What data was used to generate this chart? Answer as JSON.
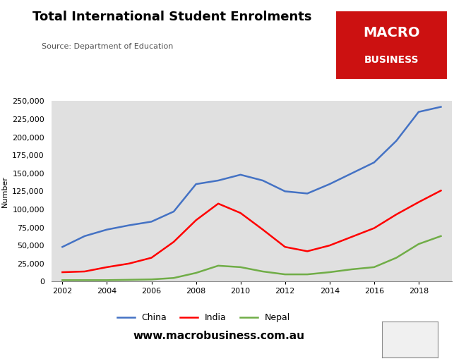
{
  "title": "Total International Student Enrolments",
  "source": "Source: Department of Education",
  "ylabel": "Number",
  "xlabel": "",
  "years": [
    2002,
    2003,
    2004,
    2005,
    2006,
    2007,
    2008,
    2009,
    2010,
    2011,
    2012,
    2013,
    2014,
    2015,
    2016,
    2017,
    2018,
    2019
  ],
  "china": [
    48000,
    63000,
    72000,
    78000,
    83000,
    97000,
    135000,
    140000,
    148000,
    140000,
    125000,
    122000,
    135000,
    150000,
    165000,
    195000,
    235000,
    242000
  ],
  "india": [
    13000,
    14000,
    20000,
    25000,
    33000,
    55000,
    85000,
    108000,
    95000,
    72000,
    48000,
    42000,
    50000,
    62000,
    74000,
    93000,
    110000,
    126000
  ],
  "nepal": [
    2000,
    2000,
    2000,
    2500,
    3000,
    5000,
    12000,
    22000,
    20000,
    14000,
    10000,
    10000,
    13000,
    17000,
    20000,
    33000,
    52000,
    63000
  ],
  "china_color": "#4472C4",
  "india_color": "#FF0000",
  "nepal_color": "#70AD47",
  "fig_bg_color": "#FFFFFF",
  "plot_bg_color": "#E0E0E0",
  "ylim": [
    0,
    250000
  ],
  "yticks": [
    0,
    25000,
    50000,
    75000,
    100000,
    125000,
    150000,
    175000,
    200000,
    225000,
    250000
  ],
  "xticks": [
    2002,
    2004,
    2006,
    2008,
    2010,
    2012,
    2014,
    2016,
    2018
  ],
  "title_fontsize": 13,
  "source_fontsize": 8,
  "axis_fontsize": 8,
  "legend_fontsize": 9,
  "ylabel_fontsize": 8,
  "website": "www.macrobusiness.com.au",
  "macro_logo_bg": "#CC1111",
  "line_width": 1.8
}
